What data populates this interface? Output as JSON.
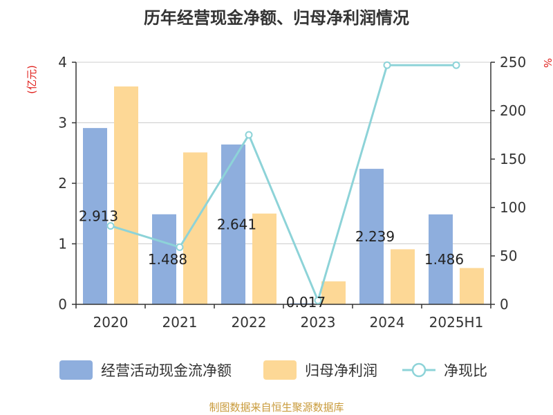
{
  "chart_data": {
    "type": "bar",
    "title": "历年经营现金净额、归母净利润情况",
    "categories": [
      "2020",
      "2021",
      "2022",
      "2023",
      "2024",
      "2025H1"
    ],
    "series": [
      {
        "name": "经营活动现金流净额",
        "type": "bar",
        "axis": "left",
        "color": "#8eaedd",
        "values": [
          2.913,
          1.488,
          2.641,
          0.017,
          2.239,
          1.486
        ],
        "data_labels": [
          "2.913",
          "1.488",
          "2.641",
          "0.017",
          "2.239",
          "1.486"
        ]
      },
      {
        "name": "归母净利润",
        "type": "bar",
        "axis": "left",
        "color": "#fdd896",
        "values": [
          3.6,
          2.51,
          1.5,
          0.38,
          0.91,
          0.6
        ]
      },
      {
        "name": "净现比",
        "type": "line",
        "axis": "right",
        "color": "#8dd3d8",
        "values": [
          81,
          59,
          175,
          4,
          247,
          247
        ]
      }
    ],
    "yleft": {
      "unit": "(亿元)",
      "ylim": [
        0,
        4
      ],
      "ticks": [
        "0",
        "1",
        "2",
        "3",
        "4"
      ]
    },
    "yright": {
      "unit": "%",
      "ylim": [
        0,
        250
      ],
      "ticks": [
        "0",
        "50",
        "100",
        "150",
        "200",
        "250"
      ]
    },
    "grid": true,
    "legend": "bottom",
    "unit_color": "#e0201c"
  },
  "source": {
    "text": "制图数据来自恒生聚源数据库",
    "color": "#c89a3a"
  }
}
